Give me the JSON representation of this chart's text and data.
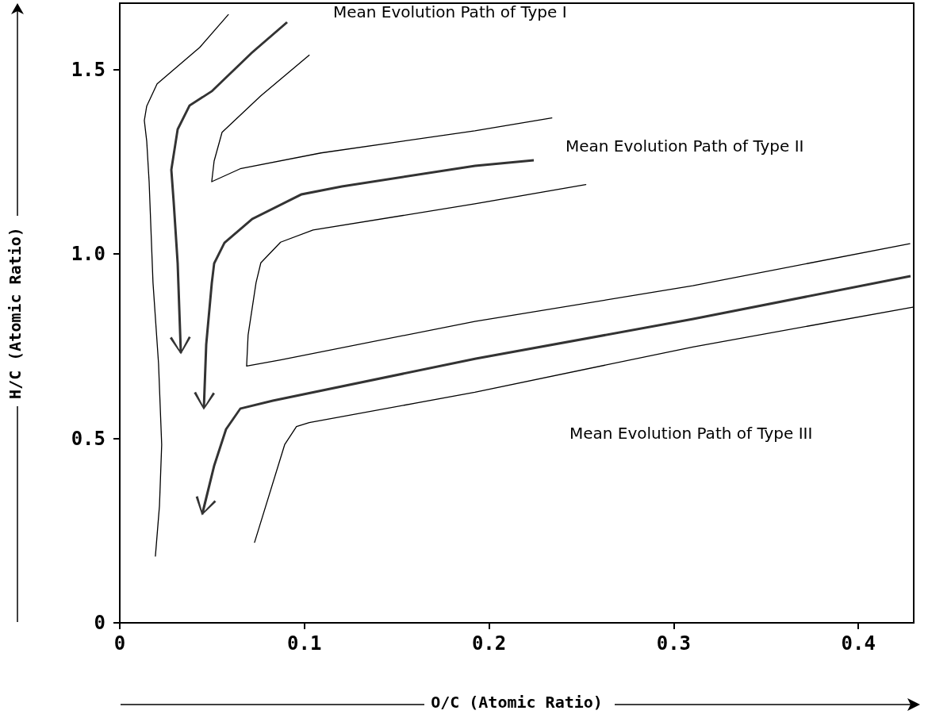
{
  "chart_data": {
    "type": "line",
    "xlabel": "O/C (Atomic Ratio)",
    "ylabel": "H/C (Atomic Ratio)",
    "xlim": [
      0,
      0.43
    ],
    "ylim": [
      0,
      1.68
    ],
    "xticks": [
      0,
      0.1,
      0.2,
      0.3,
      0.4
    ],
    "yticks": [
      0,
      0.5,
      {
        "value": 1,
        "label": "1.0"
      },
      1.5
    ],
    "grid": false,
    "marker": "none",
    "series": [
      {
        "color": "#000000",
        "x": [
          0.0588,
          0.0433,
          0.0202,
          0.0146,
          0.0133,
          0.0146,
          0.0159,
          0.018,
          0.021,
          0.0227,
          0.0215,
          0.0193
        ],
        "values": [
          1.649,
          1.56,
          1.461,
          1.401,
          1.362,
          1.306,
          1.196,
          0.922,
          0.703,
          0.483,
          0.317,
          0.181
        ]
      },
      {
        "color": "#000000",
        "x": [
          0.1026,
          0.0764,
          0.0554,
          0.0511,
          0.0498,
          0.0652,
          0.109,
          0.1923,
          0.234
        ],
        "values": [
          1.539,
          1.429,
          1.33,
          1.252,
          1.196,
          1.231,
          1.274,
          1.334,
          1.369
        ]
      },
      {
        "color": "#000000",
        "x": [
          0.2524,
          0.1923,
          0.1047,
          0.0871,
          0.0764,
          0.0738,
          0.0695,
          0.0687,
          0.0871,
          0.1923,
          0.3103,
          0.4279
        ],
        "values": [
          1.188,
          1.136,
          1.065,
          1.032,
          0.976,
          0.922,
          0.78,
          0.696,
          0.713,
          0.817,
          0.914,
          1.028
        ]
      },
      {
        "color": "#000000",
        "x": [
          0.073,
          0.0893,
          0.0957,
          0.1026,
          0.1923,
          0.3103,
          0.4296
        ],
        "values": [
          0.218,
          0.483,
          0.532,
          0.543,
          0.625,
          0.748,
          0.856
        ]
      }
    ],
    "annotations": [
      "Mean Evolution Path of Type I",
      "Mean Evolution Path of Type II",
      "Mean Evolution Path of Type III"
    ]
  }
}
